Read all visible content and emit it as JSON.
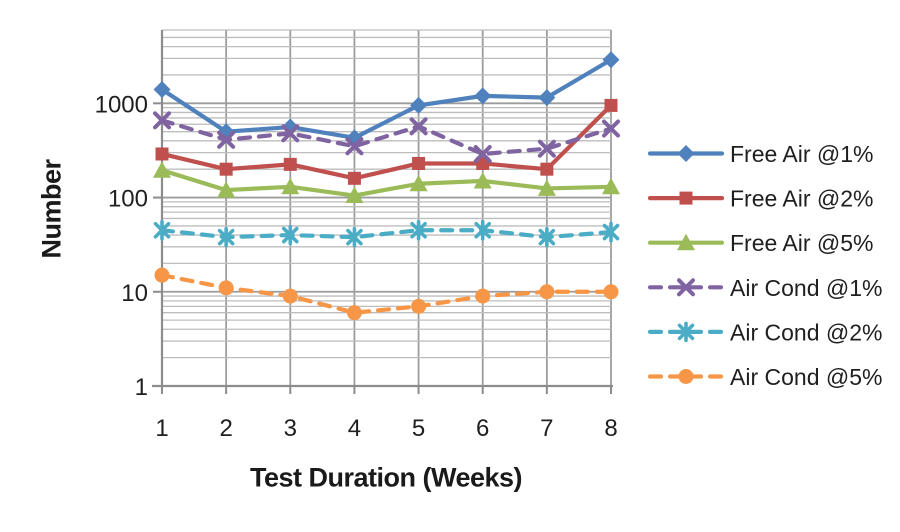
{
  "chart_style": {
    "background": "#ffffff",
    "axis_color": "#8c8c8c",
    "grid_major_color": "#9c9c9c",
    "grid_minor_color": "#bdbdbd",
    "text_color": "#1f1f1f"
  },
  "chart_data": {
    "type": "line",
    "title": "",
    "xlabel": "Test Duration (Weeks)",
    "ylabel": "Number",
    "x": [
      1,
      2,
      3,
      4,
      5,
      6,
      7,
      8
    ],
    "x_tick_labels": [
      "1",
      "2",
      "3",
      "4",
      "5",
      "6",
      "7",
      "8"
    ],
    "y_scale": "log",
    "ylim": [
      1,
      6000
    ],
    "y_ticks": [
      1,
      10,
      100,
      1000
    ],
    "y_tick_labels": [
      "1",
      "10",
      "100",
      "1000"
    ],
    "grid": "major and minor log gridlines, vertical gridlines at each week",
    "legend_position": "right",
    "series": [
      {
        "name": "Free Air @1%",
        "color": "#4F81BD",
        "marker": "diamond",
        "line_style": "solid",
        "values": [
          1400,
          500,
          560,
          430,
          950,
          1200,
          1150,
          2900
        ]
      },
      {
        "name": "Free Air @2%",
        "color": "#C0504D",
        "marker": "square",
        "line_style": "solid",
        "values": [
          290,
          200,
          225,
          160,
          230,
          230,
          200,
          950
        ]
      },
      {
        "name": "Free Air @5%",
        "color": "#9BBB59",
        "marker": "triangle",
        "line_style": "solid",
        "values": [
          195,
          120,
          130,
          105,
          140,
          150,
          125,
          130
        ]
      },
      {
        "name": "Air Cond @1%",
        "color": "#8064A2",
        "marker": "x",
        "line_style": "dashed",
        "values": [
          660,
          410,
          480,
          350,
          570,
          290,
          330,
          540
        ]
      },
      {
        "name": "Air Cond @2%",
        "color": "#4BACC6",
        "marker": "asterisk",
        "line_style": "dashed",
        "values": [
          45,
          38,
          40,
          38,
          45,
          45,
          38,
          43
        ]
      },
      {
        "name": "Air Cond @5%",
        "color": "#F79646",
        "marker": "circle",
        "line_style": "dashed",
        "values": [
          15,
          11,
          9,
          6,
          7,
          9,
          10,
          10
        ]
      }
    ]
  }
}
